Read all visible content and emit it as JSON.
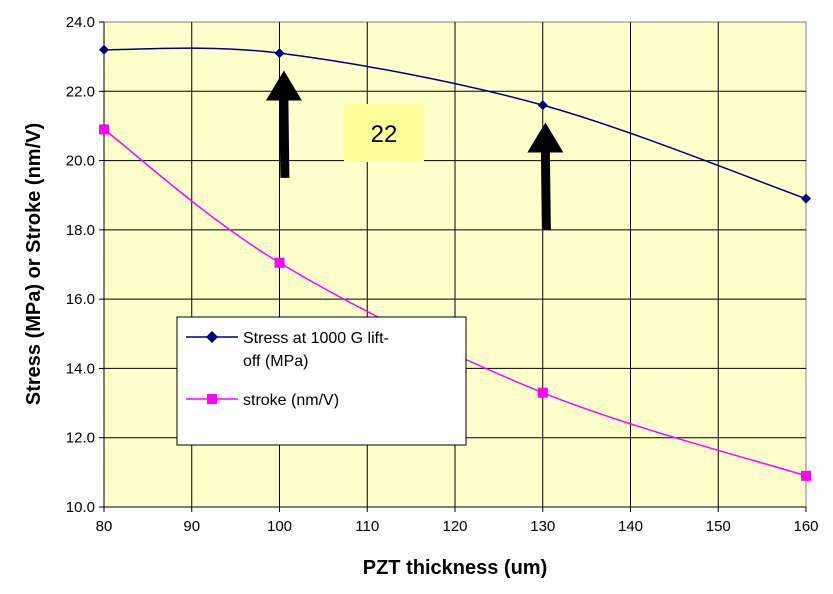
{
  "chart_data": {
    "type": "line",
    "xlabel": "PZT thickness (um)",
    "ylabel": "Stress (MPa) or Stroke (nm/V)",
    "xlim": [
      80,
      160
    ],
    "ylim": [
      10.0,
      24.0
    ],
    "x_ticks": [
      "80",
      "90",
      "100",
      "110",
      "120",
      "130",
      "140",
      "150",
      "160"
    ],
    "y_ticks": [
      "10.0",
      "12.0",
      "14.0",
      "16.0",
      "18.0",
      "20.0",
      "22.0",
      "24.0"
    ],
    "grid": true,
    "plot_background": "#ffffcc",
    "legend_position": "center-left",
    "series": [
      {
        "name": "Stress at 1000 G lift-off (MPa)",
        "legend_lines": [
          "Stress at 1000 G lift-",
          "off (MPa)"
        ],
        "color": "#000080",
        "marker": "diamond",
        "x": [
          80,
          100,
          130,
          160
        ],
        "y": [
          23.2,
          23.1,
          21.6,
          18.9
        ]
      },
      {
        "name": "stroke (nm/V)",
        "legend_lines": [
          "stroke (nm/V)"
        ],
        "color": "#ff00ff",
        "marker": "square",
        "x": [
          80,
          100,
          130,
          160
        ],
        "y": [
          20.9,
          17.05,
          13.3,
          10.9
        ]
      }
    ],
    "annotations": {
      "label_box": {
        "text": "22",
        "background": "#ffff99"
      },
      "arrows": [
        {
          "x": 100.5,
          "y_tip": 22.6,
          "y_tail": 19.5
        },
        {
          "x": 130.3,
          "y_tip": 21.1,
          "y_tail": 18.0
        }
      ]
    }
  }
}
